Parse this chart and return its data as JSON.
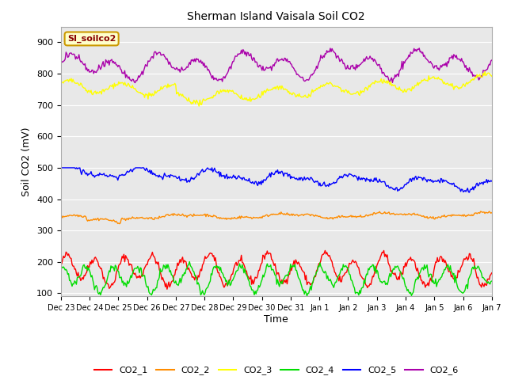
{
  "title": "Sherman Island Vaisala Soil CO2",
  "ylabel": "Soil CO2 (mV)",
  "xlabel": "Time",
  "legend_label": "SI_soilco2",
  "series_labels": [
    "CO2_1",
    "CO2_2",
    "CO2_3",
    "CO2_4",
    "CO2_5",
    "CO2_6"
  ],
  "colors": {
    "CO2_1": "#ff0000",
    "CO2_2": "#ff8c00",
    "CO2_3": "#ffff00",
    "CO2_4": "#00dd00",
    "CO2_5": "#0000ff",
    "CO2_6": "#aa00aa"
  },
  "ylim": [
    90,
    950
  ],
  "yticks": [
    100,
    200,
    300,
    400,
    500,
    600,
    700,
    800,
    900
  ],
  "plot_bg_color": "#e8e8e8",
  "fig_bg_color": "#ffffff",
  "linewidth": 1.0,
  "num_points": 500,
  "x_labels": [
    "Dec 23",
    "Dec 24",
    "Dec 25",
    "Dec 26",
    "Dec 27",
    "Dec 28",
    "Dec 29",
    "Dec 30",
    "Dec 31",
    "Jan 1",
    "Jan 2",
    "Jan 3",
    "Jan 4",
    "Jan 5",
    "Jan 6",
    "Jan 7"
  ]
}
